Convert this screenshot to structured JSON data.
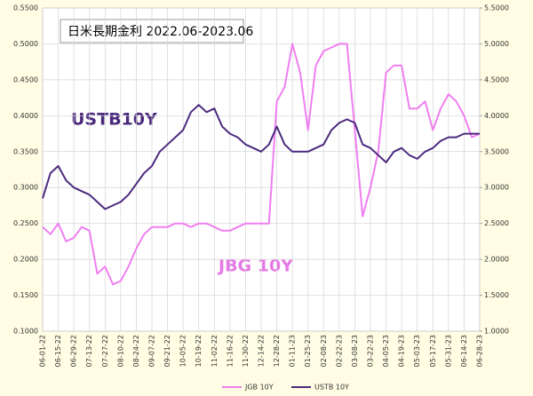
{
  "chart_data": {
    "type": "line",
    "title": "日米長期金利 2022.06-2023.06",
    "annotations": [
      "USTB10Y",
      "JBG 10Y"
    ],
    "categories": [
      "06-01-22",
      null,
      "06-15-22",
      null,
      "06-29-22",
      null,
      "07-13-22",
      null,
      "07-27-22",
      null,
      "08-10-22",
      null,
      "08-24-22",
      null,
      "09-07-22",
      null,
      "09-21-22",
      null,
      "10-05-22",
      null,
      "10-19-22",
      null,
      "11-02-22",
      null,
      "11-16-22",
      null,
      "11-30-22",
      null,
      "12-14-22",
      null,
      "12-28-22",
      null,
      "01-11-23",
      null,
      "01-25-23",
      null,
      "02-08-23",
      null,
      "02-22-23",
      null,
      "03-08-23",
      null,
      "03-22-23",
      null,
      "04-05-23",
      null,
      "04-19-23",
      null,
      "05-03-23",
      null,
      "05-17-23",
      null,
      "05-31-23",
      null,
      "06-14-23",
      null,
      "06-28-23"
    ],
    "series": [
      {
        "name": "JGB 10Y",
        "color": "#f07ef0",
        "values": [
          0.245,
          0.235,
          0.25,
          0.225,
          0.23,
          0.245,
          0.24,
          0.18,
          0.19,
          0.165,
          0.17,
          0.19,
          0.215,
          0.235,
          0.245,
          0.245,
          0.245,
          0.25,
          0.25,
          0.245,
          0.25,
          0.25,
          0.245,
          0.24,
          0.24,
          0.245,
          0.25,
          0.25,
          0.25,
          0.25,
          0.42,
          0.44,
          0.5,
          0.46,
          0.38,
          0.47,
          0.49,
          0.495,
          0.5,
          0.5,
          0.38,
          0.26,
          0.3,
          0.35,
          0.46,
          0.47,
          0.47,
          0.41,
          0.41,
          0.42,
          0.38,
          0.41,
          0.43,
          0.42,
          0.4,
          0.37,
          0.375
        ]
      },
      {
        "name": "USTB 10Y",
        "color": "#4b2a7e",
        "axis": "y2",
        "values": [
          2.85,
          3.2,
          3.3,
          3.1,
          3.0,
          2.95,
          2.9,
          2.8,
          2.7,
          2.75,
          2.8,
          2.9,
          3.05,
          3.2,
          3.3,
          3.5,
          3.6,
          3.7,
          3.8,
          4.05,
          4.15,
          4.05,
          4.1,
          3.85,
          3.75,
          3.7,
          3.6,
          3.55,
          3.5,
          3.6,
          3.85,
          3.6,
          3.5,
          3.5,
          3.5,
          3.55,
          3.6,
          3.8,
          3.9,
          3.95,
          3.9,
          3.6,
          3.55,
          3.45,
          3.35,
          3.5,
          3.55,
          3.45,
          3.4,
          3.5,
          3.55,
          3.65,
          3.7,
          3.7,
          3.75,
          3.75,
          3.75
        ]
      }
    ],
    "ylim": [
      0.1,
      0.55
    ],
    "yticks": [
      {
        "value": 0.1,
        "label": "0.1000"
      },
      {
        "value": 0.15,
        "label": "0.1500"
      },
      {
        "value": 0.2,
        "label": "0.2000"
      },
      {
        "value": 0.25,
        "label": "0.2500"
      },
      {
        "value": 0.3,
        "label": "0.3000"
      },
      {
        "value": 0.35,
        "label": "0.3500"
      },
      {
        "value": 0.4,
        "label": "0.4000"
      },
      {
        "value": 0.45,
        "label": "0.4500"
      },
      {
        "value": 0.5,
        "label": "0.5000"
      },
      {
        "value": 0.55,
        "label": "0.5500"
      }
    ],
    "y2lim": [
      1,
      5.5
    ],
    "y2ticks": [
      {
        "value": 1,
        "label": "1.0000"
      },
      {
        "value": 1.5,
        "label": "1.5000"
      },
      {
        "value": 2,
        "label": "2.0000"
      },
      {
        "value": 2.5,
        "label": "2.5000"
      },
      {
        "value": 3,
        "label": "3.0000"
      },
      {
        "value": 3.5,
        "label": "3.5000"
      },
      {
        "value": 4,
        "label": "4.0000"
      },
      {
        "value": 4.5,
        "label": "4.5000"
      },
      {
        "value": 5,
        "label": "5.0000"
      },
      {
        "value": 5.5,
        "label": "5.5000"
      }
    ],
    "grid": true
  }
}
